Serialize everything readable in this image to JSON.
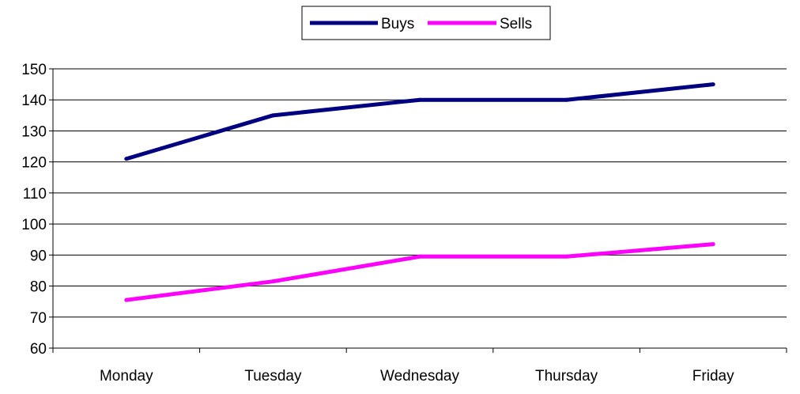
{
  "chart_data": {
    "type": "line",
    "title": "",
    "xlabel": "",
    "ylabel": "",
    "categories": [
      "Monday",
      "Tuesday",
      "Wednesday",
      "Thursday",
      "Friday"
    ],
    "ylim": [
      60,
      150
    ],
    "yticks": [
      60,
      70,
      80,
      90,
      100,
      110,
      120,
      130,
      140,
      150
    ],
    "grid": "horizontal",
    "legend": "top-center",
    "series": [
      {
        "name": "Buys",
        "color": "#000080",
        "values": [
          121,
          135,
          140,
          140,
          145
        ]
      },
      {
        "name": "Sells",
        "color": "#ff00ff",
        "values": [
          75.5,
          81.5,
          89.5,
          89.5,
          93.5
        ]
      }
    ]
  }
}
